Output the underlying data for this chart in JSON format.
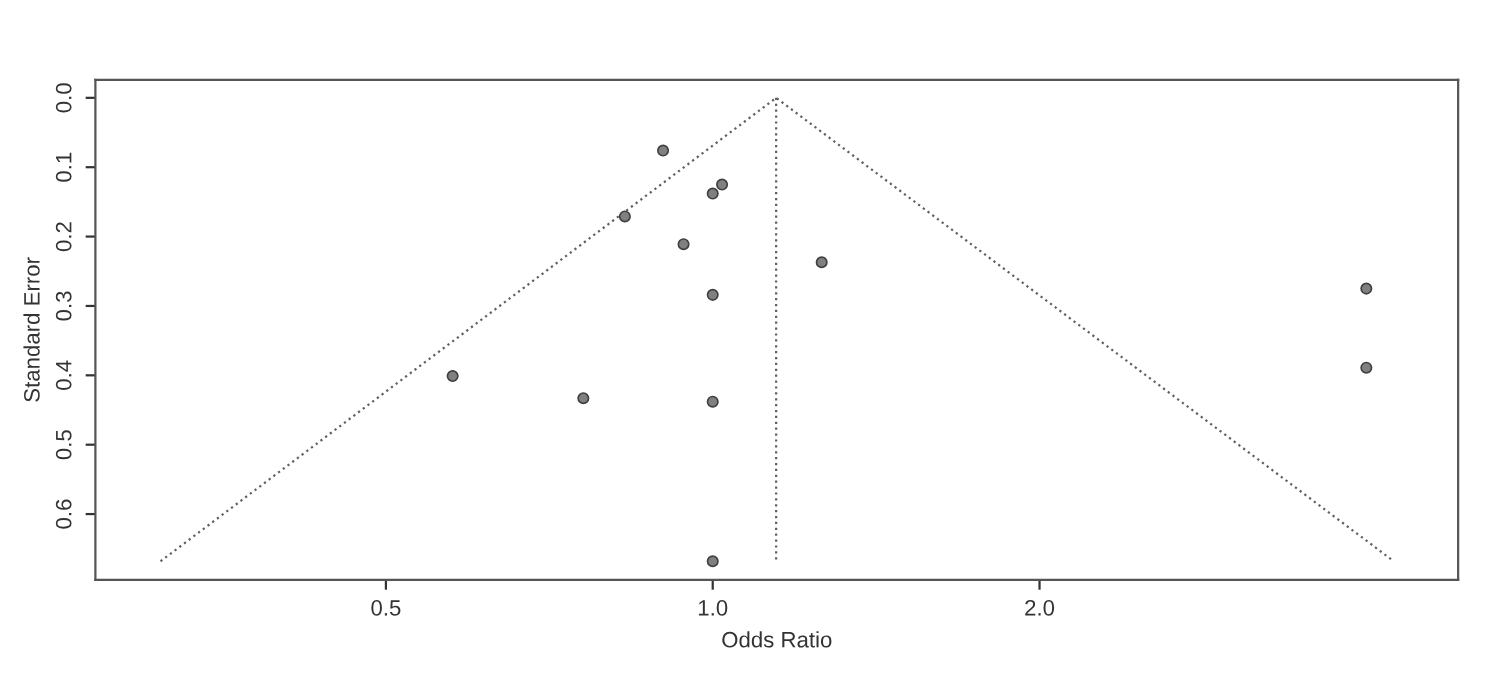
{
  "chart_data": {
    "type": "scatter",
    "xlabel": "Odds Ratio",
    "ylabel": "Standard Error",
    "log": "x",
    "xlim": [
      0.27,
      4.86
    ],
    "xticks": [
      {
        "value": 0.5,
        "label": "0.5"
      },
      {
        "value": 1.0,
        "label": "1.0"
      },
      {
        "value": 2.0,
        "label": "2.0"
      }
    ],
    "ylim": [
      0.695,
      -0.026
    ],
    "yticks": [
      {
        "value": 0.0,
        "label": "0.0"
      },
      {
        "value": 0.1,
        "label": "0.1"
      },
      {
        "value": 0.2,
        "label": "0.2"
      },
      {
        "value": 0.3,
        "label": "0.3"
      },
      {
        "value": 0.4,
        "label": "0.4"
      },
      {
        "value": 0.5,
        "label": "0.5"
      },
      {
        "value": 0.6,
        "label": "0.6"
      }
    ],
    "grid": false,
    "series": [
      {
        "type": "line",
        "color": "#606060",
        "line_style": "dotted",
        "marker": "none",
        "x": [
          0.31,
          1.144,
          4.24
        ],
        "values": [
          0.668,
          0.0,
          0.668
        ]
      },
      {
        "type": "line",
        "color": "#606060",
        "line_style": "dotted",
        "marker": "none",
        "x": [
          1.144,
          1.144
        ],
        "values": [
          0.0,
          0.668
        ]
      },
      {
        "color": "#808080",
        "marker": "circle",
        "x": [
          0.9,
          1.02,
          1.0,
          0.83,
          0.94,
          1.0,
          0.576,
          0.76,
          1.0,
          1.0,
          1.26,
          4.0,
          4.0
        ],
        "values": [
          0.076,
          0.125,
          0.138,
          0.171,
          0.211,
          0.284,
          0.401,
          0.433,
          0.438,
          0.668,
          0.237,
          0.275,
          0.389
        ]
      }
    ]
  }
}
